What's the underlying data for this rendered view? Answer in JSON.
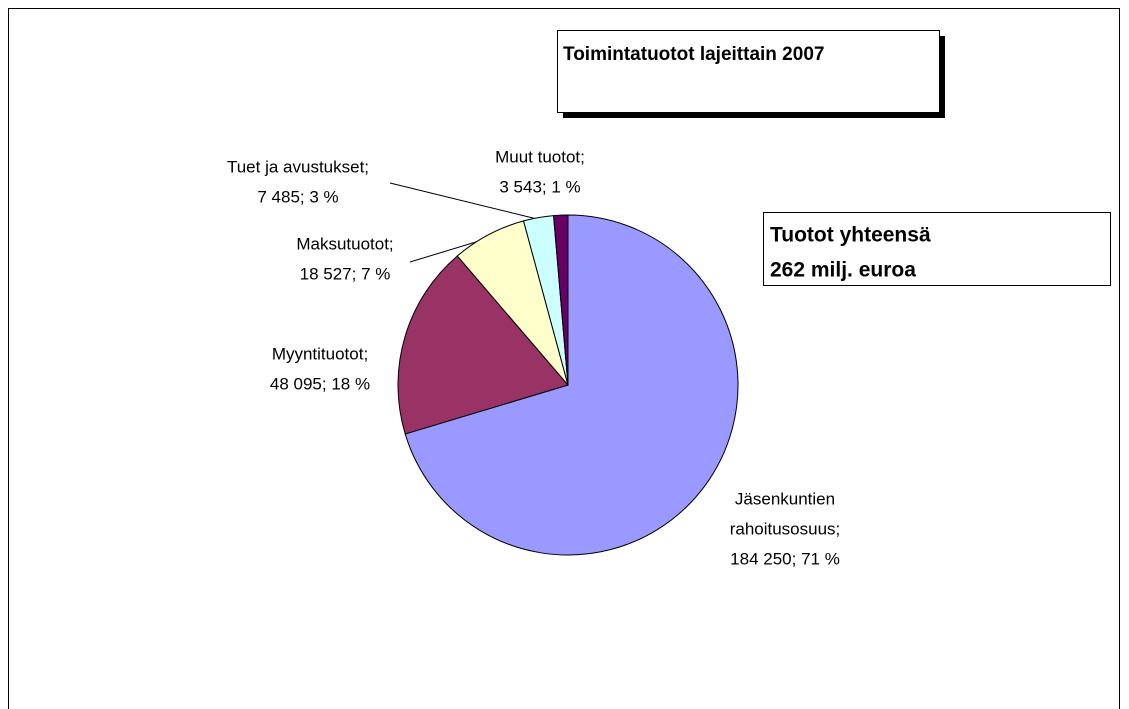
{
  "chart_data": {
    "type": "pie",
    "title": "Toimintatuotot  lajeittain 2007",
    "annotation": [
      "Tuotot yhteensä",
      "262 milj. euroa"
    ],
    "values": [
      184250,
      48095,
      18527,
      7485,
      3543
    ],
    "labels": [
      [
        "Jäsenkuntien",
        "rahoitusosuus;",
        "184 250; 71 %"
      ],
      [
        "Myyntituotot;",
        "48 095; 18 %"
      ],
      [
        "Maksutuotot;",
        "18 527; 7 %"
      ],
      [
        "Tuet ja avustukset;",
        "7 485; 3 %"
      ],
      [
        "Muut tuotot;",
        "3 543; 1 %"
      ]
    ],
    "colors": [
      "#9999ff",
      "#993366",
      "#ffffcc",
      "#ccffff",
      "#660066"
    ]
  }
}
